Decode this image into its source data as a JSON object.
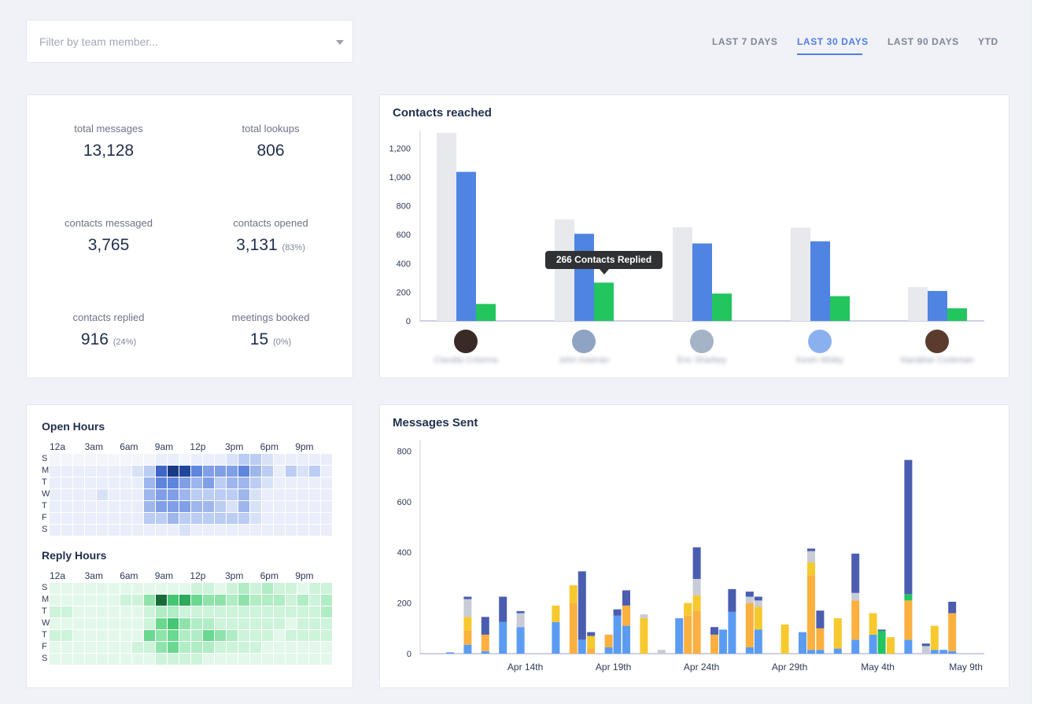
{
  "filter": {
    "placeholder": "Filter by team member..."
  },
  "tabs": [
    {
      "label": "LAST 7 DAYS",
      "active": false
    },
    {
      "label": "LAST 30 DAYS",
      "active": true
    },
    {
      "label": "LAST 90 DAYS",
      "active": false
    },
    {
      "label": "YTD",
      "active": false
    }
  ],
  "stats": {
    "total_messages": {
      "label": "total messages",
      "value": "13,128"
    },
    "total_lookups": {
      "label": "total lookups",
      "value": "806"
    },
    "contacts_messaged": {
      "label": "contacts messaged",
      "value": "3,765"
    },
    "contacts_opened": {
      "label": "contacts opened",
      "value": "3,131",
      "pct": "(83%)"
    },
    "contacts_replied": {
      "label": "contacts replied",
      "value": "916",
      "pct": "(24%)"
    },
    "meetings_booked": {
      "label": "meetings booked",
      "value": "15",
      "pct": "(0%)"
    }
  },
  "colors": {
    "accent": "#4f7de2",
    "messaged": "#e8e9ed",
    "opened": "#4f84e3",
    "replied": "#22c55e",
    "ms_gray": "#c8ccd6",
    "ms_blue": "#5b9cf2",
    "ms_yellow": "#f6c92e",
    "ms_orange": "#fbb040",
    "ms_green": "#22c55e",
    "ms_navy": "#4a5db0"
  },
  "contacts_reached": {
    "title": "Contacts reached",
    "tooltip": "266 Contacts Replied",
    "people": [
      {
        "name": "Claudia Colonna",
        "avatar_color": "#3a2a26"
      },
      {
        "name": "John Keenan",
        "avatar_color": "#8fa3c4"
      },
      {
        "name": "Eric Sharkey",
        "avatar_color": "#a5b3c6"
      },
      {
        "name": "Kevin Wisky",
        "avatar_color": "#8bb0f0"
      },
      {
        "name": "Nanalise Cookman",
        "avatar_color": "#5a3b2e"
      }
    ],
    "chart_data": {
      "type": "bar",
      "categories": [
        "Claudia Colonna",
        "John Keenan",
        "Eric Sharkey",
        "Kevin Wisky",
        "Nanalise Cookman"
      ],
      "series": [
        {
          "key": "messaged",
          "values": [
            1305,
            705,
            650,
            648,
            235
          ]
        },
        {
          "key": "opened",
          "values": [
            1035,
            605,
            538,
            553,
            208
          ]
        },
        {
          "key": "replied",
          "values": [
            118,
            266,
            190,
            172,
            88
          ]
        }
      ],
      "ylim": [
        0,
        1300
      ],
      "yticks": [
        0,
        200,
        400,
        600,
        800,
        1000,
        1200
      ],
      "ytick_labels": [
        "0",
        "200",
        "400",
        "600",
        "800",
        "1,000",
        "1,200"
      ],
      "grid": false
    }
  },
  "open_hours": {
    "title": "Open Hours",
    "hours": [
      "12a",
      "3am",
      "6am",
      "9am",
      "12p",
      "3pm",
      "6pm",
      "9pm"
    ],
    "days": [
      "S",
      "M",
      "T",
      "W",
      "T",
      "F",
      "S"
    ],
    "chart_data": {
      "type": "heatmap",
      "rows": [
        "S",
        "M",
        "T",
        "W",
        "T",
        "F",
        "S"
      ],
      "columns": [
        "12a",
        "1a",
        "2a",
        "3a",
        "4a",
        "5a",
        "6a",
        "7a",
        "8a",
        "9a",
        "10a",
        "11a",
        "12p",
        "1p",
        "2p",
        "3p",
        "4p",
        "5p",
        "6p",
        "7p",
        "8p",
        "9p",
        "10p",
        "11p"
      ],
      "values": [
        [
          0,
          0,
          0,
          0,
          0,
          0,
          0,
          0,
          0,
          1,
          1,
          0,
          1,
          1,
          1,
          2,
          3,
          3,
          2,
          1,
          1,
          1,
          1,
          1
        ],
        [
          1,
          1,
          1,
          1,
          1,
          1,
          1,
          2,
          3,
          7,
          9,
          8,
          6,
          5,
          5,
          5,
          6,
          4,
          3,
          1,
          3,
          2,
          3,
          1
        ],
        [
          1,
          1,
          1,
          1,
          1,
          1,
          1,
          1,
          4,
          6,
          6,
          5,
          4,
          5,
          3,
          4,
          4,
          3,
          2,
          1,
          1,
          1,
          1,
          1
        ],
        [
          1,
          1,
          1,
          1,
          2,
          1,
          1,
          1,
          4,
          5,
          5,
          4,
          3,
          3,
          3,
          3,
          4,
          2,
          1,
          1,
          1,
          1,
          1,
          1
        ],
        [
          1,
          1,
          1,
          1,
          1,
          1,
          1,
          1,
          4,
          5,
          5,
          5,
          4,
          4,
          3,
          2,
          4,
          2,
          1,
          1,
          1,
          1,
          1,
          1
        ],
        [
          1,
          1,
          1,
          1,
          1,
          1,
          1,
          1,
          3,
          3,
          4,
          3,
          3,
          3,
          3,
          3,
          3,
          2,
          1,
          1,
          1,
          1,
          1,
          1
        ],
        [
          1,
          1,
          1,
          1,
          1,
          1,
          1,
          1,
          1,
          1,
          1,
          2,
          1,
          1,
          1,
          1,
          1,
          1,
          1,
          1,
          1,
          1,
          1,
          1
        ]
      ]
    }
  },
  "reply_hours": {
    "title": "Reply Hours",
    "hours": [
      "12a",
      "3am",
      "6am",
      "9am",
      "12p",
      "3pm",
      "6pm",
      "9pm"
    ],
    "days": [
      "S",
      "M",
      "T",
      "W",
      "T",
      "F",
      "S"
    ],
    "chart_data": {
      "type": "heatmap",
      "rows": [
        "S",
        "M",
        "T",
        "W",
        "T",
        "F",
        "S"
      ],
      "columns": [
        "12a",
        "1a",
        "2a",
        "3a",
        "4a",
        "5a",
        "6a",
        "7a",
        "8a",
        "9a",
        "10a",
        "11a",
        "12p",
        "1p",
        "2p",
        "3p",
        "4p",
        "5p",
        "6p",
        "7p",
        "8p",
        "9p",
        "10p",
        "11p"
      ],
      "values": [
        [
          1,
          1,
          1,
          1,
          1,
          1,
          1,
          1,
          1,
          1,
          1,
          1,
          2,
          2,
          1,
          2,
          3,
          2,
          3,
          2,
          2,
          1,
          2,
          2
        ],
        [
          1,
          1,
          1,
          1,
          1,
          1,
          2,
          2,
          4,
          8,
          6,
          7,
          5,
          4,
          4,
          3,
          4,
          3,
          3,
          3,
          2,
          3,
          2,
          3
        ],
        [
          2,
          2,
          1,
          1,
          1,
          1,
          1,
          1,
          2,
          3,
          3,
          2,
          2,
          2,
          2,
          2,
          2,
          2,
          2,
          2,
          2,
          2,
          2,
          3
        ],
        [
          1,
          1,
          1,
          1,
          1,
          1,
          1,
          1,
          2,
          5,
          6,
          4,
          3,
          3,
          2,
          2,
          2,
          2,
          2,
          2,
          1,
          2,
          2,
          2
        ],
        [
          2,
          2,
          1,
          1,
          1,
          1,
          1,
          1,
          5,
          4,
          5,
          3,
          3,
          5,
          4,
          3,
          2,
          2,
          2,
          1,
          2,
          2,
          2,
          2
        ],
        [
          1,
          1,
          1,
          1,
          1,
          1,
          1,
          2,
          2,
          4,
          5,
          3,
          3,
          3,
          2,
          2,
          2,
          2,
          1,
          1,
          1,
          1,
          1,
          1
        ],
        [
          1,
          1,
          1,
          1,
          1,
          1,
          1,
          1,
          1,
          2,
          2,
          2,
          2,
          1,
          1,
          1,
          1,
          1,
          1,
          1,
          1,
          1,
          1,
          1
        ]
      ]
    }
  },
  "messages_sent": {
    "title": "Messages Sent",
    "chart_data": {
      "type": "bar",
      "stacked": true,
      "x_tick_labels": [
        "Apr 14th",
        "Apr 19th",
        "Apr 24th",
        "Apr 29th",
        "May 4th",
        "May 9th"
      ],
      "x_tick_index": [
        4,
        9,
        14,
        19,
        24,
        29
      ],
      "ylim": [
        0,
        820
      ],
      "yticks": [
        0,
        200,
        400,
        600,
        800
      ],
      "series_keys": [
        "ms_blue",
        "ms_orange",
        "ms_yellow",
        "ms_green",
        "ms_gray",
        "ms_navy"
      ],
      "bars": [
        {
          "day": 0,
          "col": 0,
          "stack": [
            5,
            0,
            0,
            0,
            0,
            0
          ]
        },
        {
          "day": 1,
          "col": 0,
          "stack": [
            35,
            55,
            55,
            0,
            70,
            10
          ]
        },
        {
          "day": 2,
          "col": 0,
          "stack": [
            10,
            65,
            0,
            0,
            0,
            70
          ]
        },
        {
          "day": 3,
          "col": 0,
          "stack": [
            125,
            0,
            0,
            0,
            0,
            100
          ]
        },
        {
          "day": 4,
          "col": 0,
          "stack": [
            105,
            0,
            0,
            0,
            55,
            8
          ]
        },
        {
          "day": 6,
          "col": 0,
          "stack": [
            125,
            0,
            65,
            0,
            0,
            0
          ]
        },
        {
          "day": 7,
          "col": 0,
          "stack": [
            0,
            200,
            70,
            0,
            0,
            0
          ]
        },
        {
          "day": 7,
          "col": 1,
          "stack": [
            55,
            0,
            0,
            0,
            0,
            270
          ]
        },
        {
          "day": 8,
          "col": 0,
          "stack": [
            0,
            20,
            50,
            0,
            0,
            15
          ]
        },
        {
          "day": 9,
          "col": 0,
          "stack": [
            25,
            50,
            0,
            0,
            0,
            0
          ]
        },
        {
          "day": 9,
          "col": 1,
          "stack": [
            150,
            0,
            0,
            0,
            0,
            25
          ]
        },
        {
          "day": 10,
          "col": 0,
          "stack": [
            110,
            80,
            0,
            0,
            0,
            60
          ]
        },
        {
          "day": 11,
          "col": 0,
          "stack": [
            0,
            0,
            140,
            0,
            15,
            0
          ]
        },
        {
          "day": 12,
          "col": 0,
          "stack": [
            0,
            0,
            0,
            0,
            15,
            0
          ]
        },
        {
          "day": 13,
          "col": 0,
          "stack": [
            140,
            0,
            0,
            0,
            0,
            0
          ]
        },
        {
          "day": 13,
          "col": 1,
          "stack": [
            0,
            150,
            50,
            0,
            0,
            0
          ]
        },
        {
          "day": 14,
          "col": 0,
          "stack": [
            0,
            170,
            60,
            0,
            65,
            125
          ]
        },
        {
          "day": 15,
          "col": 0,
          "stack": [
            0,
            75,
            0,
            0,
            0,
            30
          ]
        },
        {
          "day": 15,
          "col": 1,
          "stack": [
            95,
            0,
            0,
            0,
            0,
            0
          ]
        },
        {
          "day": 16,
          "col": 0,
          "stack": [
            165,
            0,
            0,
            0,
            0,
            90
          ]
        },
        {
          "day": 17,
          "col": 0,
          "stack": [
            25,
            175,
            0,
            0,
            25,
            20
          ]
        },
        {
          "day": 17,
          "col": 1,
          "stack": [
            95,
            0,
            90,
            0,
            25,
            15
          ]
        },
        {
          "day": 18,
          "col": 0,
          "stack": [
            0,
            0,
            0,
            0,
            0,
            0
          ]
        },
        {
          "day": 19,
          "col": 0,
          "stack": [
            0,
            0,
            115,
            0,
            0,
            0
          ]
        },
        {
          "day": 20,
          "col": 0,
          "stack": [
            85,
            0,
            0,
            0,
            0,
            0
          ]
        },
        {
          "day": 20,
          "col": 1,
          "stack": [
            15,
            295,
            50,
            0,
            45,
            10
          ]
        },
        {
          "day": 21,
          "col": 0,
          "stack": [
            15,
            85,
            0,
            0,
            0,
            70
          ]
        },
        {
          "day": 22,
          "col": 0,
          "stack": [
            20,
            0,
            120,
            0,
            0,
            0
          ]
        },
        {
          "day": 23,
          "col": 0,
          "stack": [
            55,
            155,
            0,
            0,
            30,
            155
          ]
        },
        {
          "day": 24,
          "col": 0,
          "stack": [
            75,
            0,
            85,
            0,
            0,
            0
          ]
        },
        {
          "day": 24,
          "col": 1,
          "stack": [
            0,
            0,
            0,
            90,
            0,
            5
          ]
        },
        {
          "day": 25,
          "col": 0,
          "stack": [
            0,
            0,
            65,
            0,
            0,
            0
          ]
        },
        {
          "day": 26,
          "col": 0,
          "stack": [
            55,
            155,
            0,
            25,
            0,
            530
          ]
        },
        {
          "day": 27,
          "col": 0,
          "stack": [
            0,
            0,
            0,
            0,
            30,
            10
          ]
        },
        {
          "day": 27,
          "col": 1,
          "stack": [
            15,
            0,
            95,
            0,
            0,
            0
          ]
        },
        {
          "day": 28,
          "col": 0,
          "stack": [
            15,
            0,
            0,
            0,
            0,
            0
          ]
        },
        {
          "day": 28,
          "col": 1,
          "stack": [
            10,
            150,
            0,
            0,
            0,
            45
          ]
        }
      ]
    }
  }
}
